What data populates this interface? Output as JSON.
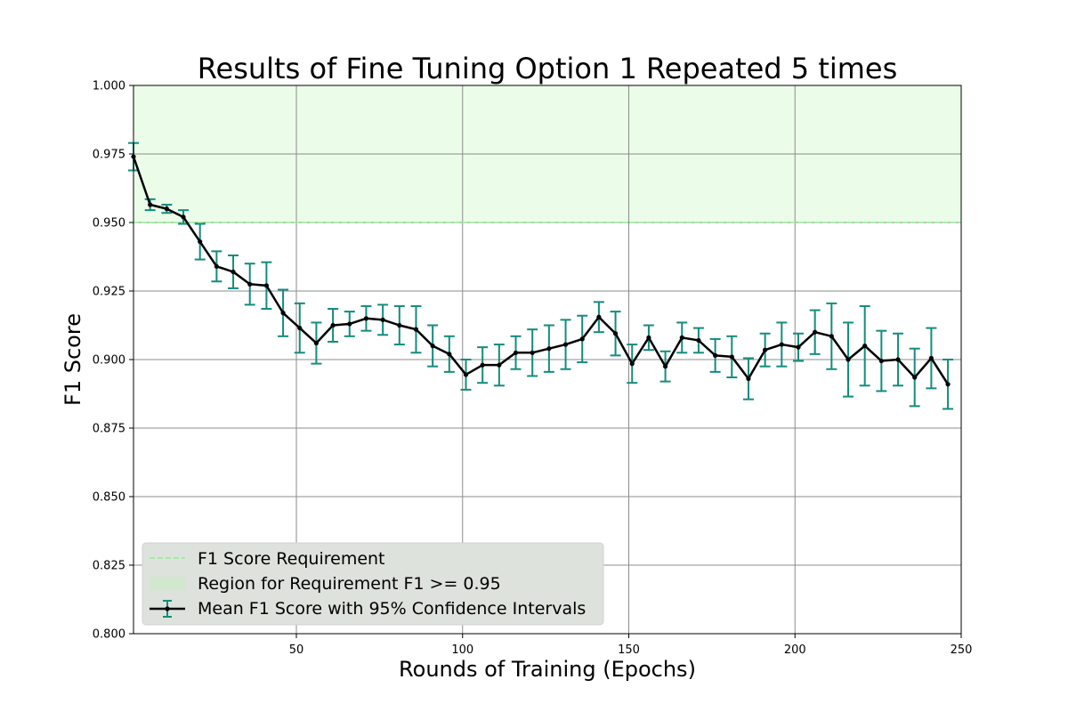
{
  "chart_data": {
    "type": "line",
    "title": "Results of Fine Tuning Option 1 Repeated 5 times",
    "xlabel": "Rounds of Training (Epochs)",
    "ylabel": "F1 Score",
    "xlim": [
      1,
      250
    ],
    "ylim": [
      0.8,
      1.0
    ],
    "xticks": [
      50,
      100,
      150,
      200,
      250
    ],
    "xtick_labels": [
      "50",
      "100",
      "150",
      "200",
      "250"
    ],
    "yticks": [
      0.8,
      0.825,
      0.85,
      0.875,
      0.9,
      0.925,
      0.95,
      0.975,
      1.0
    ],
    "ytick_labels": [
      "0.800",
      "0.825",
      "0.850",
      "0.875",
      "0.900",
      "0.925",
      "0.950",
      "0.975",
      "1.000"
    ],
    "grid": true,
    "legend_position": "bottom-left",
    "requirement": {
      "name": "F1 Score Requirement",
      "y": 0.95,
      "color": "#90ee90"
    },
    "region": {
      "name": "Region for Requirement F1 >= 0.95",
      "y_from": 0.95,
      "y_to": 1.0,
      "color": "#ebfde9"
    },
    "series": [
      {
        "name": "Mean F1 Score with 95% Confidence Intervals",
        "line_color": "#000000",
        "errorbar_color": "#138c7e",
        "x": [
          1,
          6,
          11,
          16,
          21,
          26,
          31,
          36,
          41,
          46,
          51,
          56,
          61,
          66,
          71,
          76,
          81,
          86,
          91,
          96,
          101,
          106,
          111,
          116,
          121,
          126,
          131,
          136,
          141,
          146,
          151,
          156,
          161,
          166,
          171,
          176,
          181,
          186,
          191,
          196,
          201,
          206,
          211,
          216,
          221,
          226,
          231,
          236,
          241,
          246
        ],
        "y": [
          0.974,
          0.9565,
          0.955,
          0.952,
          0.943,
          0.934,
          0.932,
          0.9275,
          0.927,
          0.917,
          0.9115,
          0.906,
          0.9125,
          0.913,
          0.915,
          0.9145,
          0.9125,
          0.911,
          0.905,
          0.902,
          0.8945,
          0.898,
          0.898,
          0.9025,
          0.9025,
          0.904,
          0.9055,
          0.9075,
          0.9155,
          0.9095,
          0.8985,
          0.908,
          0.8975,
          0.908,
          0.907,
          0.9015,
          0.901,
          0.893,
          0.9035,
          0.9055,
          0.9045,
          0.91,
          0.9085,
          0.9,
          0.905,
          0.8995,
          0.9,
          0.8935,
          0.9005,
          0.891
        ],
        "err": [
          0.005,
          0.002,
          0.0015,
          0.0025,
          0.0065,
          0.0055,
          0.006,
          0.0075,
          0.0085,
          0.0085,
          0.009,
          0.0075,
          0.006,
          0.0045,
          0.0045,
          0.0055,
          0.007,
          0.0085,
          0.0075,
          0.0065,
          0.0055,
          0.0065,
          0.0075,
          0.006,
          0.0085,
          0.0085,
          0.009,
          0.0085,
          0.0055,
          0.008,
          0.007,
          0.0045,
          0.0055,
          0.0055,
          0.0045,
          0.006,
          0.0075,
          0.0075,
          0.006,
          0.008,
          0.005,
          0.008,
          0.012,
          0.0135,
          0.0145,
          0.011,
          0.0095,
          0.0105,
          0.011,
          0.009
        ]
      }
    ]
  }
}
